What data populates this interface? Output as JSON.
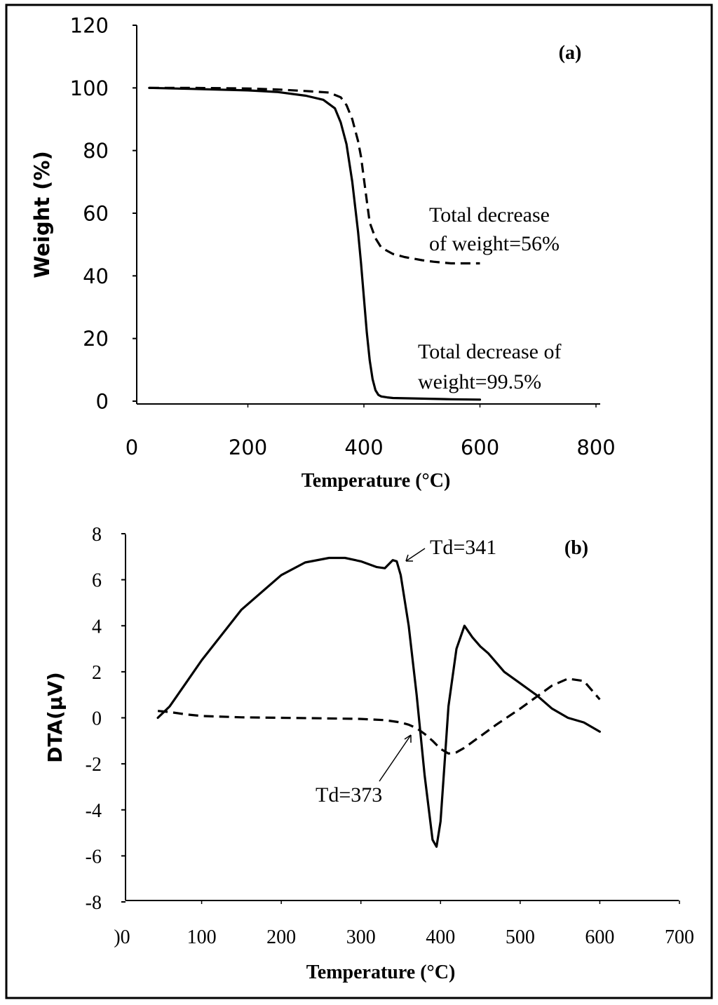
{
  "chart_data": [
    {
      "type": "line",
      "panel_label": "(a)",
      "xlabel": "Temperature (°C)",
      "ylabel": "Weight (%)",
      "xlim": [
        0,
        800
      ],
      "ylim": [
        0,
        120
      ],
      "xticks": [
        "0",
        "200",
        "400",
        "600",
        "800"
      ],
      "yticks": [
        "0",
        "20",
        "40",
        "60",
        "80",
        "100",
        "120"
      ],
      "series": [
        {
          "name": "solid",
          "style": "solid",
          "x": [
            30,
            100,
            200,
            250,
            300,
            330,
            350,
            360,
            370,
            380,
            390,
            395,
            400,
            405,
            410,
            415,
            420,
            425,
            430,
            440,
            450,
            500,
            550,
            600
          ],
          "y": [
            100,
            99.7,
            99.2,
            98.7,
            97.5,
            96.2,
            93.5,
            89,
            82,
            70,
            54,
            44,
            33,
            22,
            13,
            7,
            3.5,
            2,
            1.5,
            1.2,
            1.0,
            0.8,
            0.6,
            0.5
          ]
        },
        {
          "name": "dashed",
          "style": "dashed",
          "x": [
            30,
            100,
            200,
            250,
            300,
            340,
            360,
            370,
            380,
            390,
            395,
            400,
            405,
            410,
            420,
            430,
            440,
            450,
            470,
            500,
            520,
            550,
            600
          ],
          "y": [
            100,
            100,
            99.8,
            99.5,
            99,
            98.5,
            97,
            94.5,
            90,
            83,
            78,
            71,
            64,
            57,
            52,
            49,
            48,
            47,
            46,
            45,
            44.5,
            44,
            44
          ]
        }
      ],
      "annotations": [
        {
          "lines": [
            "Total decrease",
            "of weight=56%"
          ]
        },
        {
          "lines": [
            "Total decrease of",
            "weight=99.5%"
          ]
        }
      ]
    },
    {
      "type": "line",
      "panel_label": "(b)",
      "xlabel": "Temperature (°C)",
      "ylabel": "DTA(µV)",
      "xlim": [
        0,
        700
      ],
      "ylim": [
        -8,
        8
      ],
      "xticks": [
        ")0",
        "100",
        "200",
        "300",
        "400",
        "500",
        "600",
        "700"
      ],
      "yticks": [
        "-8",
        "-6",
        "-4",
        "-2",
        "0",
        "2",
        "4",
        "6",
        "8"
      ],
      "series": [
        {
          "name": "solid",
          "style": "solid",
          "x": [
            45,
            60,
            80,
            100,
            150,
            200,
            230,
            260,
            280,
            300,
            320,
            330,
            340,
            345,
            350,
            360,
            370,
            380,
            390,
            395,
            400,
            405,
            410,
            420,
            430,
            440,
            450,
            460,
            480,
            500,
            520,
            540,
            560,
            580,
            600
          ],
          "y": [
            0,
            0.5,
            1.5,
            2.5,
            4.7,
            6.2,
            6.75,
            6.95,
            6.95,
            6.8,
            6.55,
            6.5,
            6.85,
            6.8,
            6.2,
            4.0,
            1.0,
            -2.5,
            -5.3,
            -5.6,
            -4.5,
            -2.0,
            0.5,
            3.0,
            4.0,
            3.5,
            3.1,
            2.8,
            2.0,
            1.5,
            1.0,
            0.4,
            0.0,
            -0.2,
            -0.6
          ]
        },
        {
          "name": "dashed",
          "style": "dashed",
          "x": [
            45,
            60,
            80,
            100,
            150,
            200,
            250,
            300,
            330,
            350,
            360,
            370,
            380,
            390,
            400,
            410,
            420,
            430,
            450,
            470,
            500,
            520,
            540,
            560,
            580,
            600
          ],
          "y": [
            0.3,
            0.25,
            0.15,
            0.08,
            0.02,
            0,
            -0.02,
            -0.05,
            -0.1,
            -0.2,
            -0.3,
            -0.45,
            -0.7,
            -1.0,
            -1.35,
            -1.55,
            -1.5,
            -1.3,
            -0.8,
            -0.3,
            0.4,
            0.9,
            1.4,
            1.7,
            1.6,
            0.8
          ]
        }
      ],
      "annotations": [
        {
          "text": "Td=341",
          "points_to": {
            "x": 341,
            "y": 6.85
          }
        },
        {
          "text": "Td=373",
          "points_to": {
            "x": 365,
            "y": -0.4
          }
        }
      ]
    }
  ]
}
